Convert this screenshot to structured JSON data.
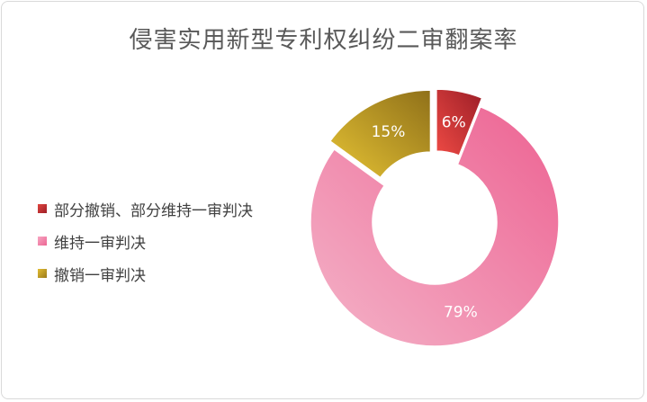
{
  "chart_data": {
    "type": "pie",
    "title": "侵害实用新型专利权纠纷二审翻案率",
    "categories": [
      "部分撤销、部分维持一审判决",
      "维持一审判决",
      "撤销一审判决"
    ],
    "values": [
      6,
      79,
      15
    ],
    "value_labels": [
      "6%",
      "79%",
      "15%"
    ],
    "legend_position": "left",
    "colors": [
      "#c0282f",
      "#ee6f9a",
      "#b8931e"
    ]
  }
}
